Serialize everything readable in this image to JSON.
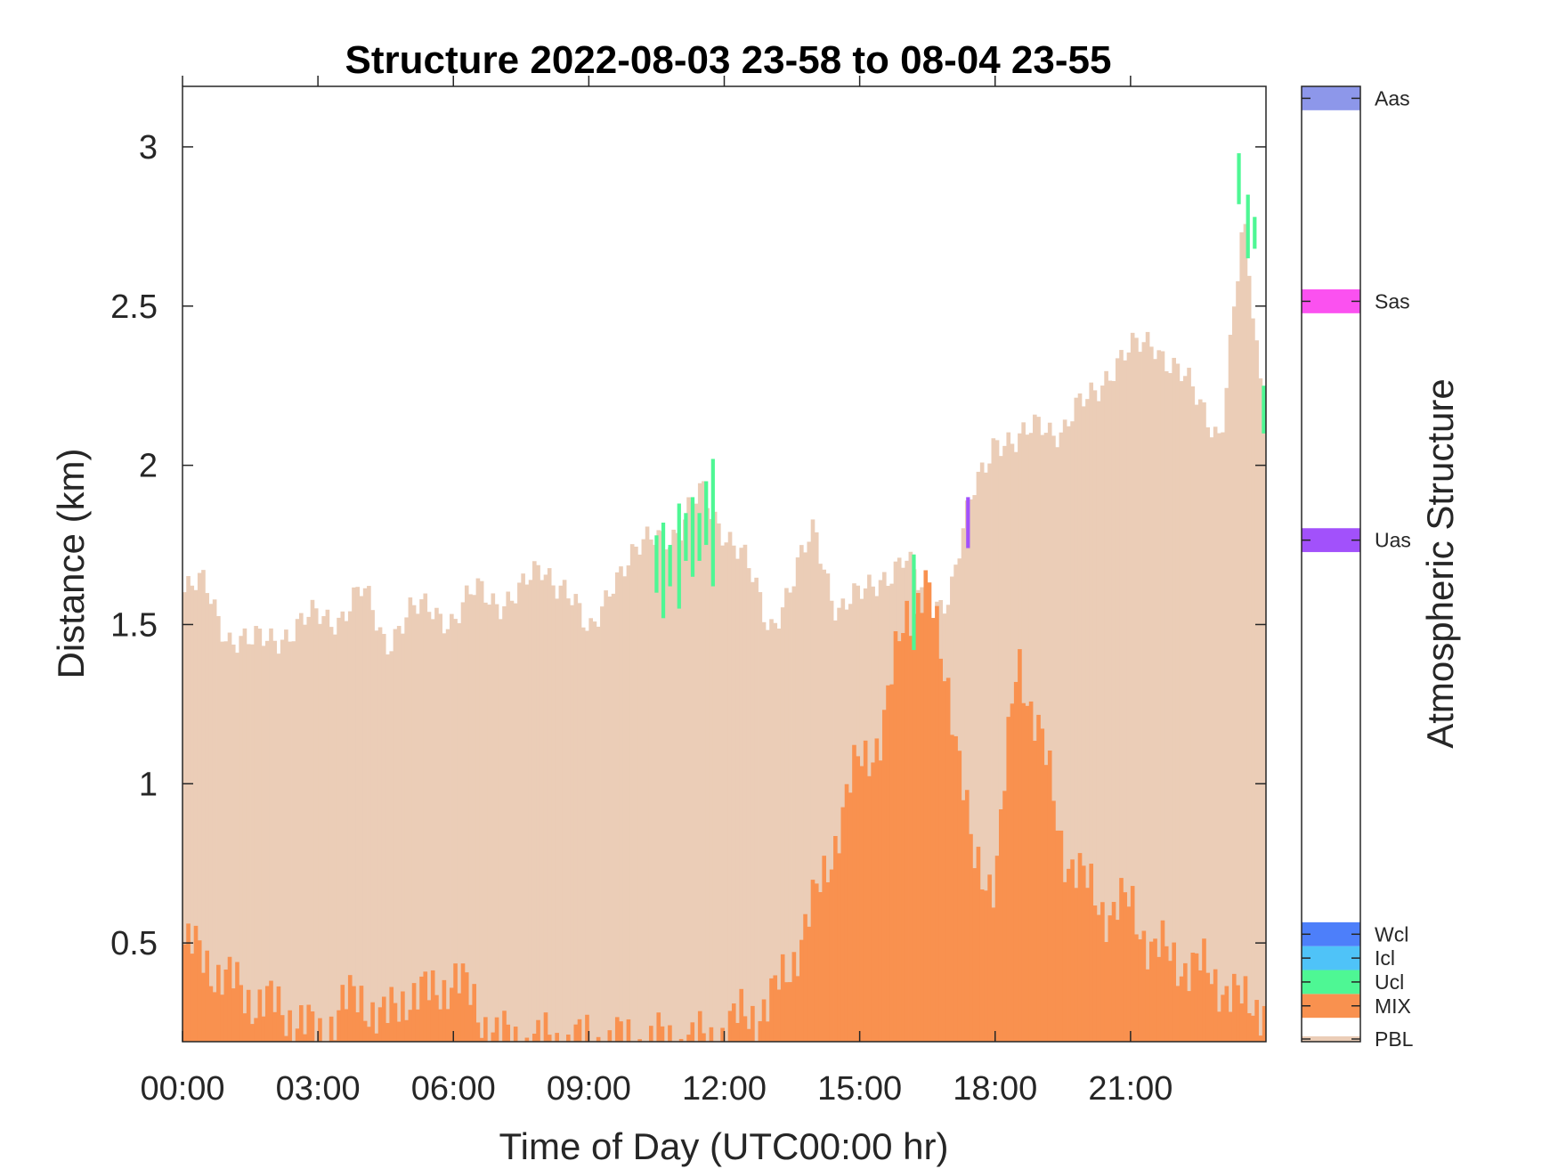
{
  "chart_data": {
    "type": "area",
    "title": "Structure 2022-08-03 23-58 to 08-04 23-55",
    "xlabel": "Time of Day (UTC00:00 hr)",
    "ylabel": "Distance (km)",
    "x_ticks": [
      {
        "value": 0,
        "label": "00:00"
      },
      {
        "value": 3,
        "label": "03:00"
      },
      {
        "value": 6,
        "label": "06:00"
      },
      {
        "value": 9,
        "label": "09:00"
      },
      {
        "value": 12,
        "label": "12:00"
      },
      {
        "value": 15,
        "label": "15:00"
      },
      {
        "value": 18,
        "label": "18:00"
      },
      {
        "value": 21,
        "label": "21:00"
      }
    ],
    "y_ticks": [
      {
        "value": 0.5,
        "label": "0.5"
      },
      {
        "value": 1,
        "label": "1"
      },
      {
        "value": 1.5,
        "label": "1.5"
      },
      {
        "value": 2,
        "label": "2"
      },
      {
        "value": 2.5,
        "label": "2.5"
      },
      {
        "value": 3,
        "label": "3"
      }
    ],
    "xlim": [
      0,
      24
    ],
    "ylim": [
      0.19,
      3.19
    ],
    "grid": false,
    "x_unit": "hour of day (UTC)",
    "series": [
      {
        "name": "PBL",
        "color": "#ebcdb7",
        "x": [
          0.0,
          0.5,
          1.0,
          1.5,
          2.0,
          2.5,
          3.0,
          3.5,
          4.0,
          4.5,
          5.0,
          5.5,
          6.0,
          6.5,
          7.0,
          7.5,
          8.0,
          8.5,
          9.0,
          9.5,
          10.0,
          10.5,
          11.0,
          11.5,
          12.0,
          12.5,
          13.0,
          13.5,
          14.0,
          14.5,
          15.0,
          15.5,
          16.0,
          16.5,
          17.0,
          17.5,
          18.0,
          18.5,
          19.0,
          19.5,
          20.0,
          20.5,
          21.0,
          21.5,
          22.0,
          22.5,
          23.0,
          23.5,
          24.0
        ],
        "values": [
          1.6,
          1.62,
          1.47,
          1.43,
          1.47,
          1.48,
          1.53,
          1.53,
          1.6,
          1.45,
          1.53,
          1.55,
          1.52,
          1.6,
          1.58,
          1.6,
          1.68,
          1.62,
          1.45,
          1.65,
          1.7,
          1.8,
          1.78,
          1.92,
          1.8,
          1.68,
          1.5,
          1.62,
          1.8,
          1.55,
          1.58,
          1.66,
          1.7,
          1.56,
          1.6,
          1.9,
          2.1,
          2.05,
          2.15,
          2.1,
          2.2,
          2.3,
          2.35,
          2.4,
          2.3,
          2.2,
          2.1,
          2.75,
          2.1
        ]
      },
      {
        "name": "MIX",
        "color": "#f9914f",
        "x": [
          0.0,
          0.5,
          1.0,
          1.5,
          2.0,
          2.5,
          3.0,
          3.5,
          4.0,
          4.5,
          5.0,
          5.5,
          6.0,
          6.5,
          7.0,
          7.5,
          8.0,
          8.5,
          9.0,
          9.5,
          10.0,
          10.5,
          11.0,
          11.5,
          12.0,
          12.5,
          13.0,
          13.5,
          14.0,
          14.5,
          15.0,
          15.5,
          16.0,
          16.5,
          17.0,
          17.5,
          18.0,
          18.5,
          19.0,
          19.5,
          20.0,
          20.5,
          21.0,
          21.5,
          22.0,
          22.5,
          23.0,
          23.5,
          24.0
        ],
        "values": [
          0.5,
          0.45,
          0.38,
          0.33,
          0.3,
          0.27,
          0.2,
          0.3,
          0.33,
          0.25,
          0.35,
          0.33,
          0.4,
          0.3,
          0.2,
          0.19,
          0.19,
          0.19,
          0.19,
          0.19,
          0.19,
          0.19,
          0.19,
          0.19,
          0.22,
          0.28,
          0.3,
          0.45,
          0.62,
          0.85,
          1.08,
          1.15,
          1.55,
          1.6,
          1.3,
          0.75,
          0.7,
          1.4,
          1.15,
          0.8,
          0.68,
          0.6,
          0.62,
          0.48,
          0.45,
          0.42,
          0.38,
          0.3,
          0.32
        ]
      },
      {
        "name": "Ucl",
        "color": "#4ef794",
        "segments": [
          {
            "x": 10.5,
            "y0": 1.6,
            "y1": 1.78
          },
          {
            "x": 10.65,
            "y0": 1.52,
            "y1": 1.82
          },
          {
            "x": 10.8,
            "y0": 1.62,
            "y1": 1.75
          },
          {
            "x": 11.0,
            "y0": 1.55,
            "y1": 1.88
          },
          {
            "x": 11.15,
            "y0": 1.7,
            "y1": 1.85
          },
          {
            "x": 11.3,
            "y0": 1.65,
            "y1": 1.9
          },
          {
            "x": 11.45,
            "y0": 1.7,
            "y1": 1.85
          },
          {
            "x": 11.6,
            "y0": 1.75,
            "y1": 1.95
          },
          {
            "x": 11.75,
            "y0": 1.62,
            "y1": 2.02
          },
          {
            "x": 16.2,
            "y0": 1.42,
            "y1": 1.72
          },
          {
            "x": 23.4,
            "y0": 2.82,
            "y1": 2.98
          },
          {
            "x": 23.6,
            "y0": 2.65,
            "y1": 2.85
          },
          {
            "x": 23.75,
            "y0": 2.68,
            "y1": 2.78
          },
          {
            "x": 23.95,
            "y0": 2.1,
            "y1": 2.25
          }
        ]
      },
      {
        "name": "Uas",
        "color": "#a251fb",
        "segments": [
          {
            "x": 17.4,
            "y0": 1.74,
            "y1": 1.9
          }
        ]
      }
    ],
    "colorbar": {
      "label": "Atmospheric Structure",
      "categories": [
        {
          "label": "PBL",
          "color": "#ebcdb7"
        },
        {
          "label": "MIX",
          "color": "#f9914f"
        },
        {
          "label": "Ucl",
          "color": "#4ef794"
        },
        {
          "label": "Icl",
          "color": "#4fc3f8"
        },
        {
          "label": "Wcl",
          "color": "#4d7ffa"
        },
        {
          "label": "Uas",
          "color": "#a251fb"
        },
        {
          "label": "Sas",
          "color": "#fb51f0"
        },
        {
          "label": "Aas",
          "color": "#8d97ea"
        }
      ]
    }
  }
}
